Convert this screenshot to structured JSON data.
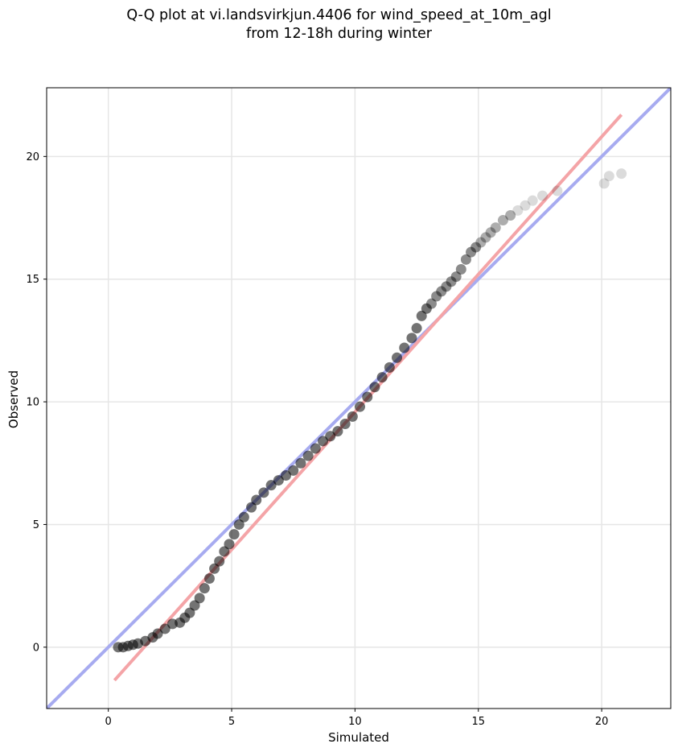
{
  "chart_data": {
    "type": "scatter",
    "title": "Q-Q plot at vi.landsvirkjun.4406 for wind_speed_at_10m_agl",
    "subtitle": "from 12-18h during winter",
    "xlabel": "Simulated",
    "ylabel": "Observed",
    "xlim": [
      -2.5,
      22.8
    ],
    "ylim": [
      -2.5,
      22.8
    ],
    "xticks": [
      0,
      5,
      10,
      15,
      20
    ],
    "yticks": [
      0,
      5,
      10,
      15,
      20
    ],
    "grid": true,
    "colors": {
      "points": "#000000",
      "fit_line": "#f4a4a7",
      "identity_line": "#a7abf0",
      "grid": "#e6e6e6"
    },
    "series": [
      {
        "kind": "points",
        "x": [
          0.4,
          0.6,
          0.8,
          1.0,
          1.2,
          1.5,
          1.8,
          2.0,
          2.3,
          2.6,
          2.9,
          3.1,
          3.3,
          3.5,
          3.7,
          3.9,
          4.1,
          4.3,
          4.5,
          4.7,
          4.9,
          5.1,
          5.3,
          5.5,
          5.8,
          6.0,
          6.3,
          6.6,
          6.9,
          7.2,
          7.5,
          7.8,
          8.1,
          8.4,
          8.7,
          9.0,
          9.3,
          9.6,
          9.9,
          10.2,
          10.5,
          10.8,
          11.1,
          11.4,
          11.7,
          12.0,
          12.3,
          12.5,
          12.7,
          12.9,
          13.1,
          13.3,
          13.5,
          13.7,
          13.9,
          14.1,
          14.3,
          14.5,
          14.7,
          14.9,
          15.1,
          15.3,
          15.5,
          15.7,
          16.0,
          16.3,
          16.6,
          16.9,
          17.2,
          17.6,
          18.2,
          20.1,
          20.3,
          20.8
        ],
        "y": [
          0.0,
          0.0,
          0.05,
          0.1,
          0.15,
          0.25,
          0.4,
          0.55,
          0.75,
          0.95,
          1.0,
          1.2,
          1.4,
          1.7,
          2.0,
          2.4,
          2.8,
          3.2,
          3.5,
          3.9,
          4.2,
          4.6,
          5.0,
          5.3,
          5.7,
          6.0,
          6.3,
          6.6,
          6.8,
          7.0,
          7.2,
          7.5,
          7.8,
          8.1,
          8.4,
          8.6,
          8.8,
          9.1,
          9.4,
          9.8,
          10.2,
          10.6,
          11.0,
          11.4,
          11.8,
          12.2,
          12.6,
          13.0,
          13.5,
          13.8,
          14.0,
          14.3,
          14.5,
          14.7,
          14.9,
          15.1,
          15.4,
          15.8,
          16.1,
          16.3,
          16.5,
          16.7,
          16.9,
          17.1,
          17.4,
          17.6,
          17.8,
          18.0,
          18.2,
          18.4,
          18.6,
          18.9,
          19.2,
          19.3
        ]
      },
      {
        "kind": "fit-line",
        "x": [
          0.25,
          20.8
        ],
        "y": [
          -1.35,
          21.7
        ]
      },
      {
        "kind": "identity-line",
        "x": [
          -2.5,
          22.8
        ],
        "y": [
          -2.5,
          22.8
        ]
      }
    ]
  }
}
